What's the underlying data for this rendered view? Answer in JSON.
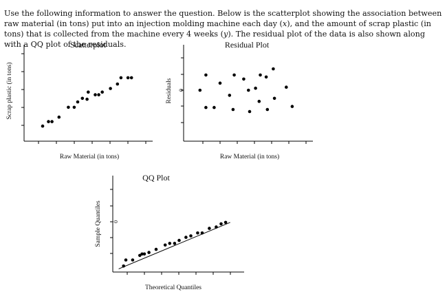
{
  "question": {
    "text_part1": "Use the following information to answer the question. Below is the scatterplot showing the association between raw material (in tons) put into an injection molding machine each day (",
    "var_x": "x",
    "text_part2": "), and the amount of scrap plastic (in tons) that is collected from the machine every 4 weeks (",
    "var_y": "y",
    "text_part3": "). The residual plot of the data is also shown along with a QQ plot of the residuals."
  },
  "chart_data": [
    {
      "type": "scatter",
      "title": "Scatterplot",
      "xlabel": "Raw Material (in tons)",
      "ylabel": "Scrap plastic (in tons)",
      "xlim": [
        0,
        100
      ],
      "ylim": [
        0,
        100
      ],
      "points": [
        [
          10,
          13
        ],
        [
          15,
          18
        ],
        [
          18,
          18
        ],
        [
          24,
          23
        ],
        [
          32,
          34
        ],
        [
          37,
          34
        ],
        [
          40,
          40
        ],
        [
          44,
          44
        ],
        [
          48,
          43
        ],
        [
          49,
          51
        ],
        [
          55,
          48
        ],
        [
          58,
          48
        ],
        [
          61,
          51
        ],
        [
          68,
          55
        ],
        [
          74,
          60
        ],
        [
          77,
          67
        ],
        [
          83,
          67
        ],
        [
          86,
          67
        ]
      ]
    },
    {
      "type": "scatter",
      "title": "Residual Plot",
      "xlabel": "Raw Material (in tons)",
      "ylabel": "Residuals",
      "y_zero_label": "0",
      "xlim": [
        0,
        100
      ],
      "ylim": [
        -2,
        2
      ],
      "points": [
        [
          8,
          0.0
        ],
        [
          13,
          0.75
        ],
        [
          13,
          -0.85
        ],
        [
          20,
          -0.85
        ],
        [
          25,
          0.35
        ],
        [
          33,
          -0.25
        ],
        [
          36,
          -0.95
        ],
        [
          37,
          0.75
        ],
        [
          45,
          0.55
        ],
        [
          49,
          0.0
        ],
        [
          50,
          -1.05
        ],
        [
          55,
          0.1
        ],
        [
          58,
          -0.55
        ],
        [
          59,
          0.75
        ],
        [
          64,
          0.65
        ],
        [
          65,
          -0.95
        ],
        [
          70,
          1.05
        ],
        [
          71,
          -0.4
        ],
        [
          81,
          0.15
        ],
        [
          86,
          -0.8
        ]
      ]
    },
    {
      "type": "scatter",
      "title": "QQ Plot",
      "xlabel": "Theoretical Quantiles",
      "ylabel": "Sample Quantiles",
      "y_zero_label": "0",
      "xlim": [
        -2,
        2
      ],
      "ylim": [
        -2,
        2
      ],
      "reference_line": true,
      "points": [
        [
          -1.71,
          -1.75
        ],
        [
          -1.64,
          -1.5
        ],
        [
          -1.43,
          -1.5
        ],
        [
          -1.21,
          -1.31
        ],
        [
          -1.14,
          -1.25
        ],
        [
          -1.07,
          -1.25
        ],
        [
          -0.93,
          -1.19
        ],
        [
          -0.71,
          -1.06
        ],
        [
          -0.43,
          -0.88
        ],
        [
          -0.29,
          -0.81
        ],
        [
          -0.14,
          -0.81
        ],
        [
          0.0,
          -0.69
        ],
        [
          0.21,
          -0.56
        ],
        [
          0.36,
          -0.5
        ],
        [
          0.57,
          -0.38
        ],
        [
          0.71,
          -0.38
        ],
        [
          0.93,
          -0.19
        ],
        [
          1.14,
          -0.13
        ],
        [
          1.29,
          0.0
        ],
        [
          1.43,
          0.06
        ]
      ]
    }
  ]
}
